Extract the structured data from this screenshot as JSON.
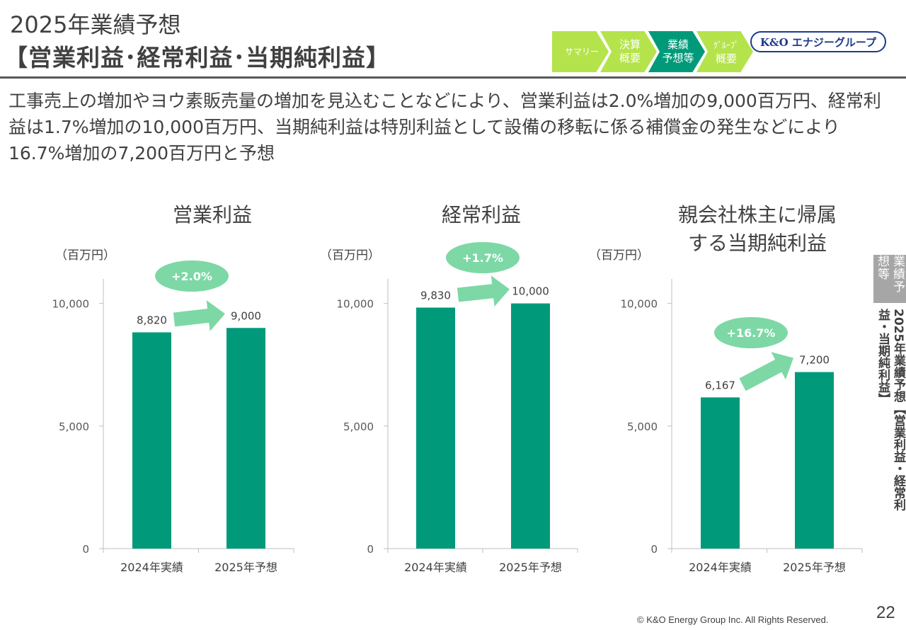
{
  "header": {
    "title_line1": "2025年業績予想",
    "title_line2": "【営業利益･経常利益･当期純利益】"
  },
  "nav": {
    "items": [
      {
        "label": "サマリー",
        "state": "inactive"
      },
      {
        "label_line1": "決算",
        "label_line2": "概要",
        "state": "inactive"
      },
      {
        "label_line1": "業績",
        "label_line2": "予想等",
        "state": "active"
      },
      {
        "label_line1": "ｸﾞﾙｰﾌﾟ",
        "label_line2": "概要",
        "state": "inactive"
      }
    ]
  },
  "logo": {
    "text": "K&O エナジーグループ"
  },
  "description": "工事売上の増加やヨウ素販売量の増加を見込むことなどにより、営業利益は2.0%増加の9,000百万円、経常利益は1.7%増加の10,000百万円、当期純利益は特別利益として設備の移転に係る補償金の発生などにより16.7%増加の7,200百万円と予想",
  "sidebar": {
    "tab_label": "業績予想等",
    "vertical_title": "2025年業績予想【営業利益・経常利益・当期純利益】"
  },
  "colors": {
    "bar": "#009a7a",
    "arrow": "#7dd8a6",
    "accent_light": "#b5e34c"
  },
  "chart_data": [
    {
      "type": "bar",
      "title": "営業利益",
      "unit": "（百万円）",
      "categories": [
        "2024年実績",
        "2025年予想"
      ],
      "values": [
        8820,
        9000
      ],
      "value_labels": [
        "8,820",
        "9,000"
      ],
      "yticks": [
        0,
        5000,
        10000
      ],
      "ytick_labels": [
        "0",
        "5,000",
        "10,000"
      ],
      "ylim": [
        0,
        11000
      ],
      "change_label": "+2.0%"
    },
    {
      "type": "bar",
      "title": "経常利益",
      "unit": "（百万円）",
      "categories": [
        "2024年実績",
        "2025年予想"
      ],
      "values": [
        9830,
        10000
      ],
      "value_labels": [
        "9,830",
        "10,000"
      ],
      "yticks": [
        0,
        5000,
        10000
      ],
      "ytick_labels": [
        "0",
        "5,000",
        "10,000"
      ],
      "ylim": [
        0,
        11000
      ],
      "change_label": "+1.7%"
    },
    {
      "type": "bar",
      "title_line1": "親会社株主に帰属",
      "title_line2": "する当期純利益",
      "unit": "（百万円）",
      "categories": [
        "2024年実績",
        "2025年予想"
      ],
      "values": [
        6167,
        7200
      ],
      "value_labels": [
        "6,167",
        "7,200"
      ],
      "yticks": [
        0,
        5000,
        10000
      ],
      "ytick_labels": [
        "0",
        "5,000",
        "10,000"
      ],
      "ylim": [
        0,
        11000
      ],
      "change_label": "+16.7%"
    }
  ],
  "footer": {
    "copyright": "© K&O Energy Group Inc. All Rights Reserved.",
    "page_number": "22"
  }
}
